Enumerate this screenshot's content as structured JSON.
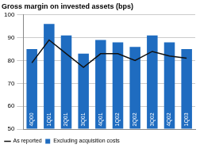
{
  "chart_data": {
    "type": "bar",
    "title": "Gross margin on invested assets (bps)",
    "categories": [
      "4Q00",
      "1Q01",
      "2Q01",
      "3Q01",
      "4Q01",
      "1Q02",
      "2Q02",
      "3Q02",
      "4Q02",
      "1Q03"
    ],
    "series": [
      {
        "name": "As reported",
        "type": "line",
        "color": "#111111",
        "values": [
          79,
          89,
          83,
          77,
          83,
          83,
          80,
          84,
          82,
          81
        ]
      },
      {
        "name": "Excluding acquisition costs",
        "type": "bar",
        "color": "#1f6cc0",
        "values": [
          85,
          96,
          91,
          83,
          89,
          88,
          86,
          91,
          88,
          85
        ]
      }
    ],
    "ylim": [
      50,
      100
    ],
    "yticks": [
      50,
      60,
      70,
      80,
      90,
      100
    ],
    "grid": true,
    "legend": "lower left"
  }
}
